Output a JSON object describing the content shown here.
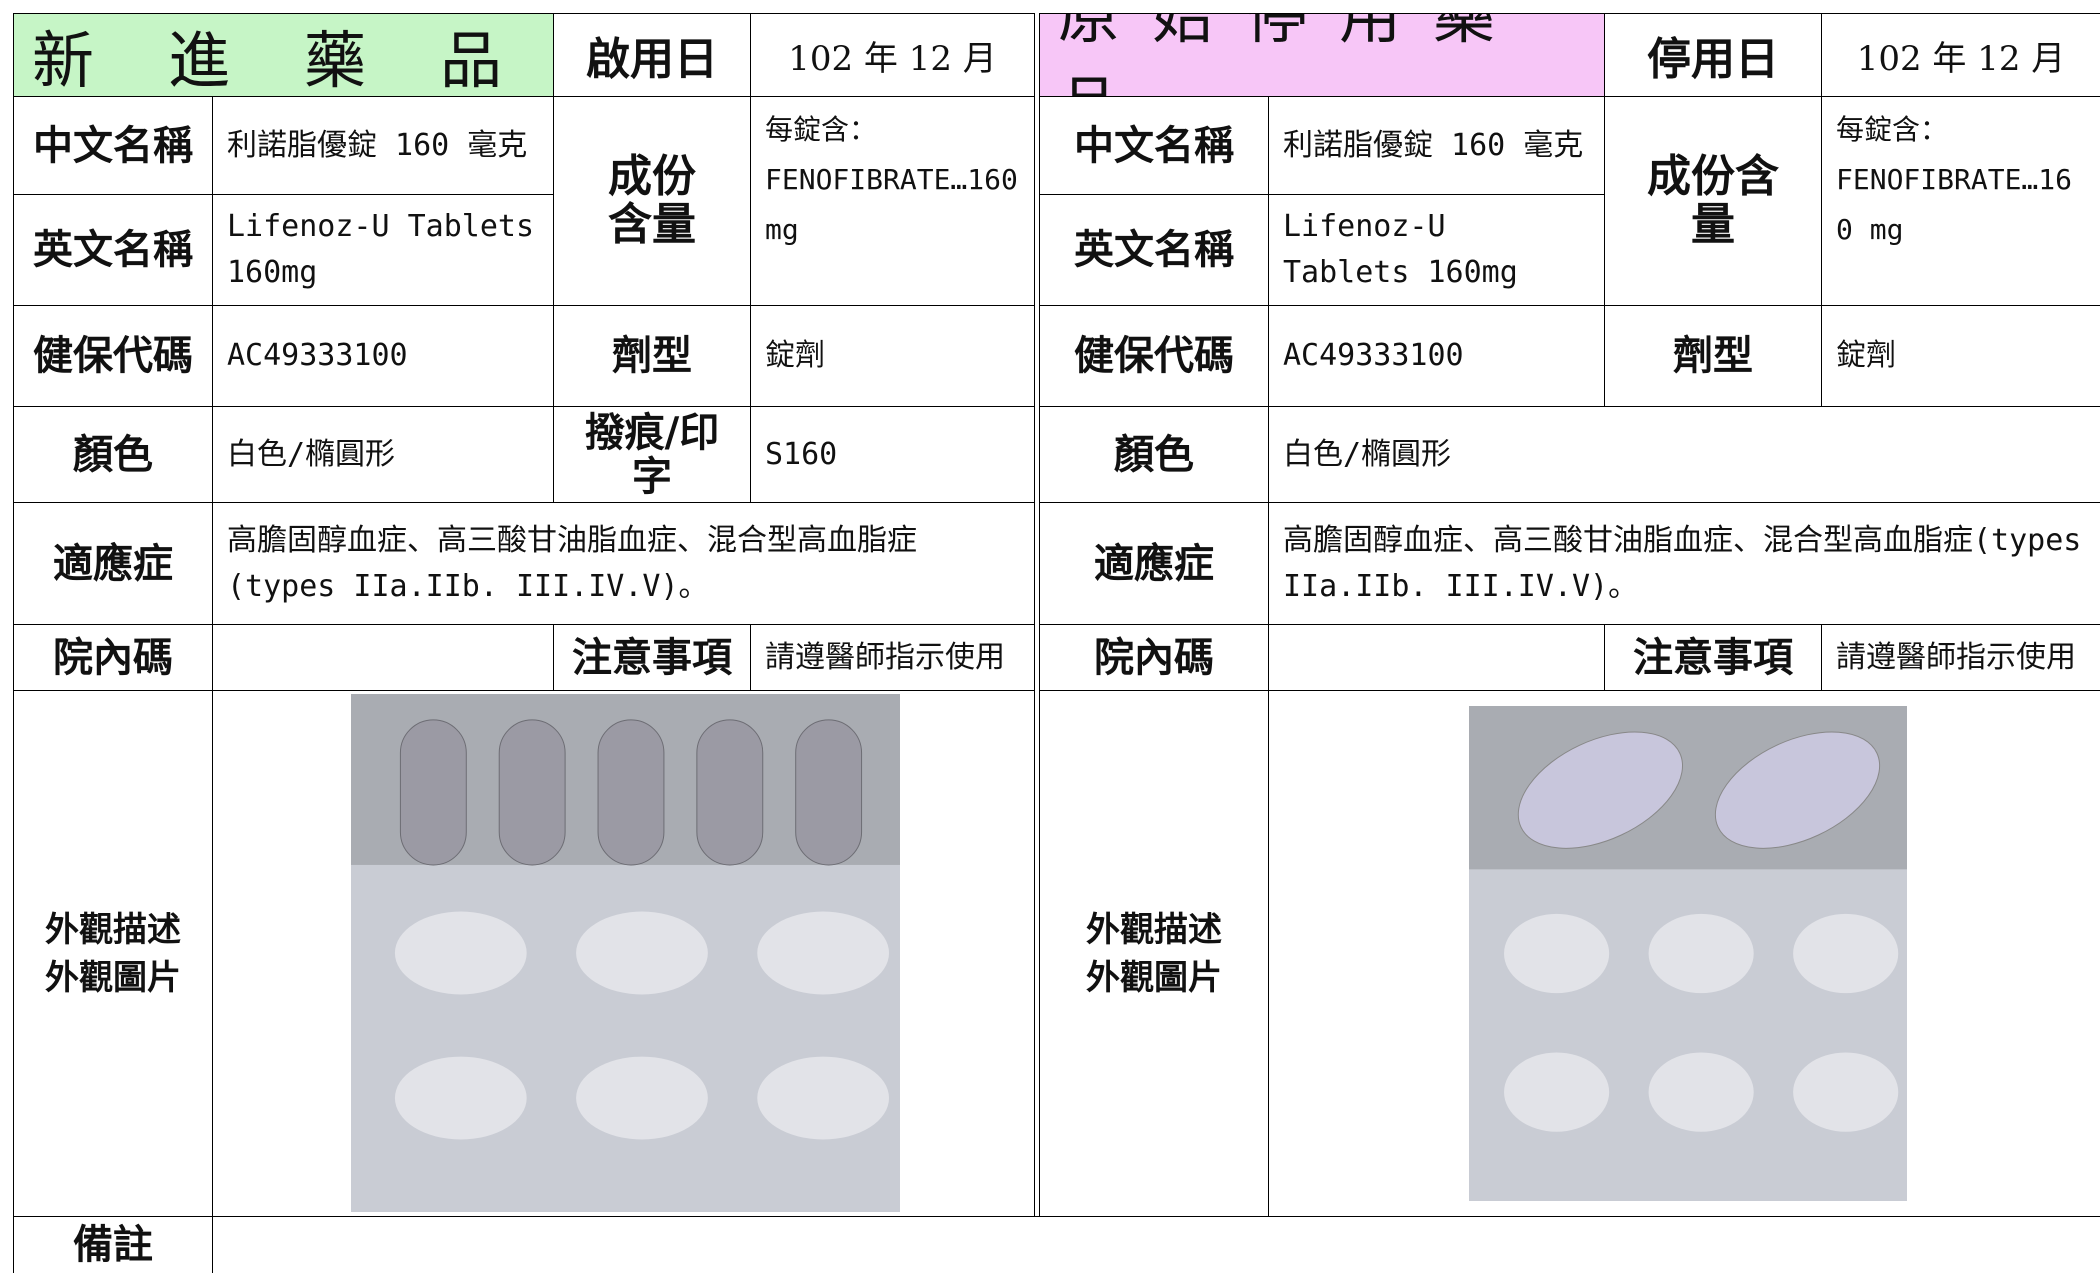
{
  "left": {
    "header": {
      "title": "新　進　藥　品",
      "date_label": "啟用日",
      "date": "102 年 12 月"
    },
    "labels": {
      "chinese_name": "中文名稱",
      "english_name": "英文名稱",
      "ingredient": "成份含量",
      "nhi_code": "健保代碼",
      "dosage_form": "劑型",
      "color": "顏色",
      "score": "撥痕/印字",
      "indication": "適應症",
      "hospital_code": "院內碼",
      "caution": "注意事項",
      "appearance": [
        "外觀描述",
        "外觀圖片"
      ]
    },
    "chinese_name": "利諾脂優錠 160 毫克",
    "english_name": "Lifenoz-U Tablets 160mg",
    "ingredient": [
      "每錠含：",
      "FENOFIBRATE…160 mg"
    ],
    "nhi_code": "AC49333100",
    "dosage_form": "錠劑",
    "color": "白色/橢圓形",
    "score": "S160",
    "indication": "高膽固醇血症、高三酸甘油脂血症、混合型高血脂症(types IIa.IIb. III.IV.V)。",
    "caution": "請遵醫師指示使用"
  },
  "right": {
    "header": {
      "title": "原 始 停 用 藥 品",
      "date_label": "停用日",
      "date": "102 年 12 月"
    },
    "labels": {
      "chinese_name": "中文名稱",
      "english_name": "英文名稱",
      "ingredient": "成份含量",
      "nhi_code": "健保代碼",
      "dosage_form": "劑型",
      "color": "顏色",
      "indication": "適應症",
      "hospital_code": "院內碼",
      "caution": "注意事項",
      "appearance": [
        "外觀描述",
        "外觀圖片"
      ]
    },
    "chinese_name": "利諾脂優錠 160 毫克",
    "english_name": "Lifenoz-U Tablets 160mg",
    "ingredient": [
      "每錠含：",
      "FENOFIBRATE…160 mg"
    ],
    "nhi_code": "AC49333100",
    "dosage_form": "錠劑",
    "color": "白色/橢圓形",
    "indication": "高膽固醇血症、高三酸甘油脂血症、混合型高血脂症(types IIa.IIb. III.IV.V)。",
    "caution": "請遵醫師指示使用"
  },
  "remarks_label": "備註"
}
